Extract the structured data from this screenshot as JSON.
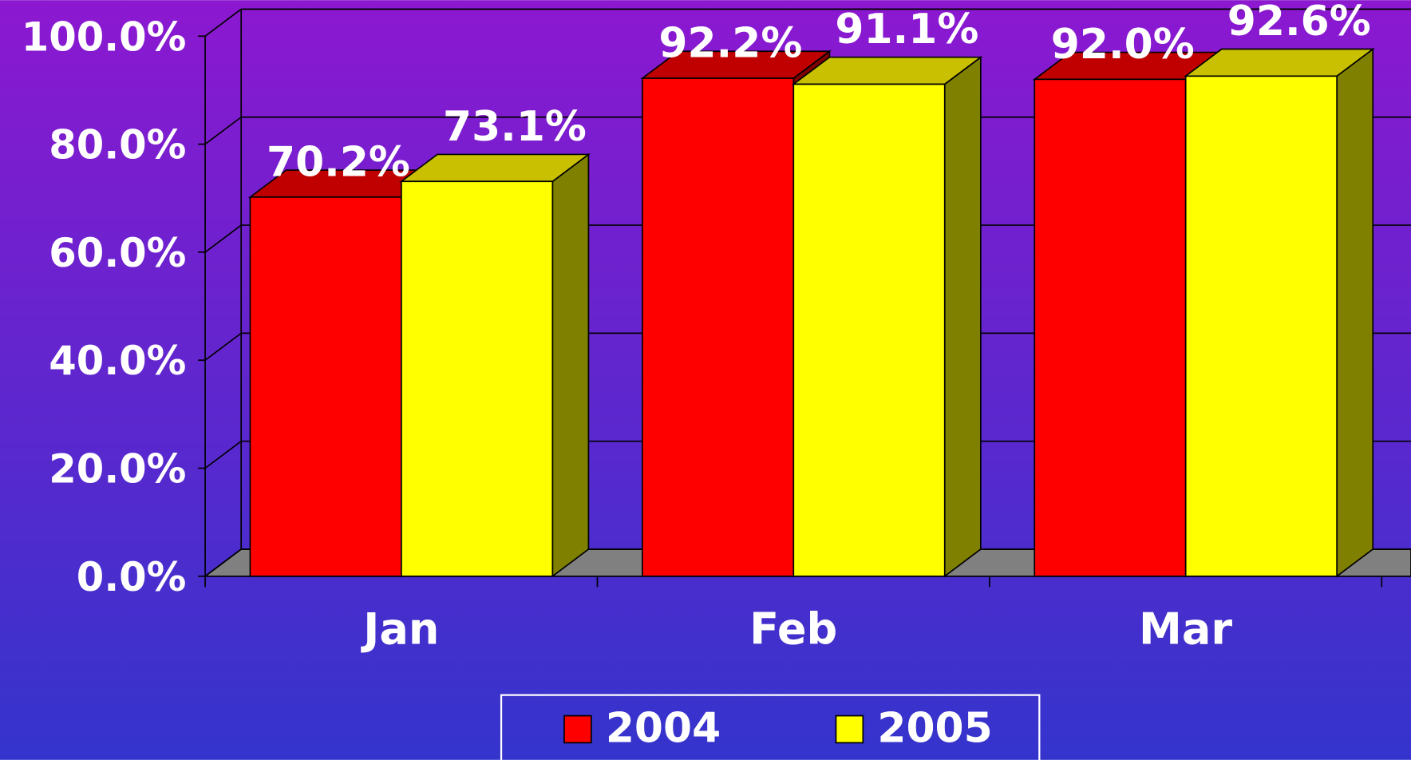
{
  "chart_data": {
    "type": "bar3d",
    "categories": [
      "Jan",
      "Feb",
      "Mar"
    ],
    "series": [
      {
        "name": "2004",
        "color": "#ff0000",
        "top_color": "#c00000",
        "side_color": "#800000",
        "values": [
          70.2,
          92.2,
          92.0
        ],
        "value_labels": [
          "70.2%",
          "92.2%",
          "92.0%"
        ]
      },
      {
        "name": "2005",
        "color": "#ffff00",
        "top_color": "#c8c000",
        "side_color": "#808000",
        "values": [
          73.1,
          91.1,
          92.6
        ],
        "value_labels": [
          "73.1%",
          "91.1%",
          "92.6%"
        ]
      }
    ],
    "ylim": [
      0,
      100
    ],
    "yticks": [
      {
        "value": 0,
        "label": "0.0%"
      },
      {
        "value": 20,
        "label": "20.0%"
      },
      {
        "value": 40,
        "label": "40.0%"
      },
      {
        "value": 60,
        "label": "60.0%"
      },
      {
        "value": 80,
        "label": "80.0%"
      },
      {
        "value": 100,
        "label": "100.0%"
      }
    ],
    "grid": true,
    "legend": "bottom"
  }
}
